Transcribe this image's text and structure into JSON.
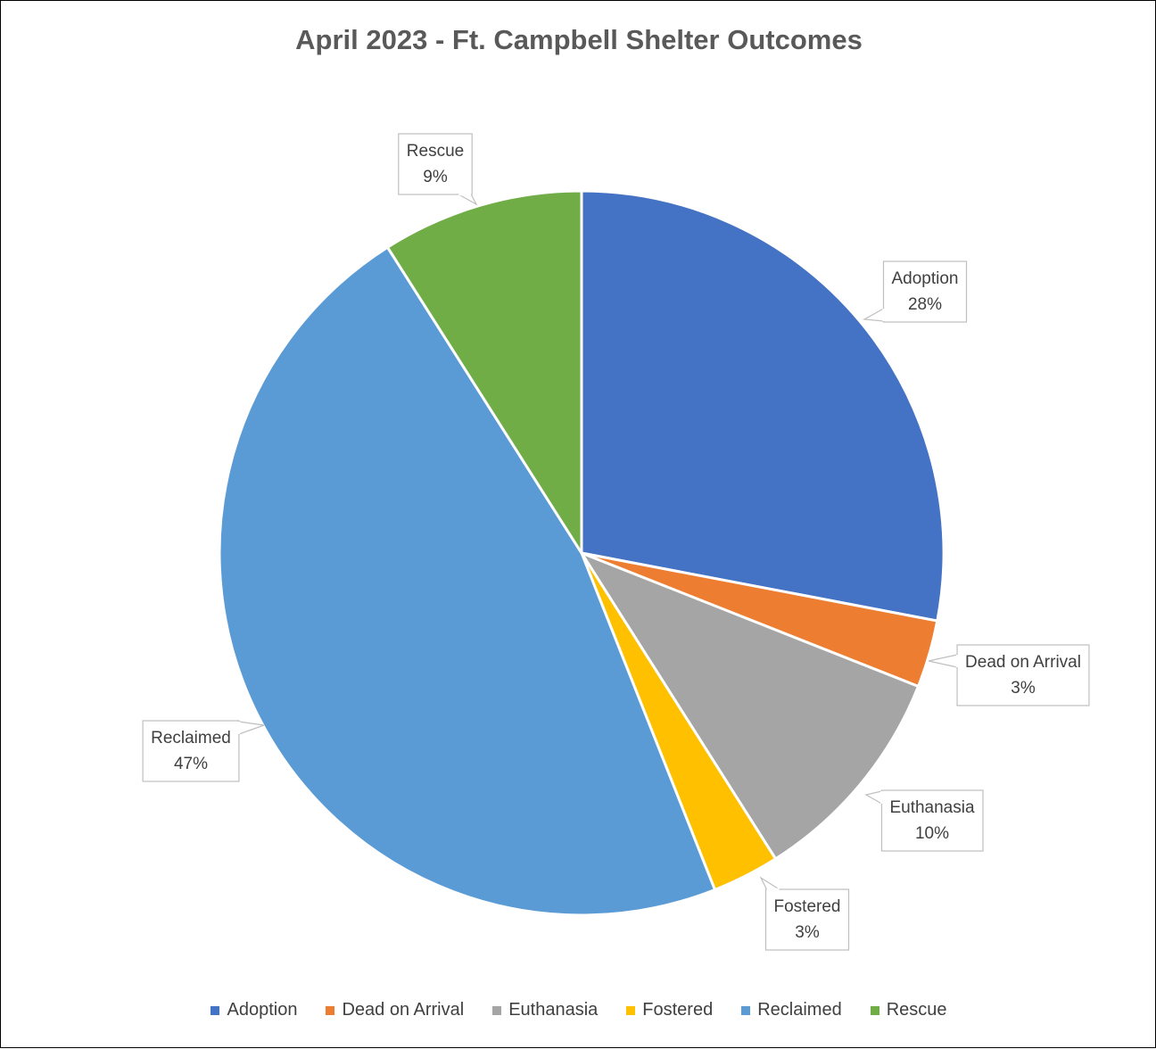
{
  "chart_data": {
    "type": "pie",
    "title": "April 2023 - Ft. Campbell Shelter Outcomes",
    "categories": [
      "Adoption",
      "Dead on Arrival",
      "Euthanasia",
      "Fostered",
      "Reclaimed",
      "Rescue"
    ],
    "values": [
      28,
      3,
      10,
      3,
      47,
      9
    ],
    "value_labels": [
      "28%",
      "3%",
      "10%",
      "3%",
      "47%",
      "9%"
    ],
    "colors": [
      "#4472C4",
      "#ED7D31",
      "#A5A5A5",
      "#FFC000",
      "#5B9BD5",
      "#70AD47"
    ],
    "start_angle_deg": 0,
    "direction": "clockwise",
    "legend_position": "bottom"
  }
}
